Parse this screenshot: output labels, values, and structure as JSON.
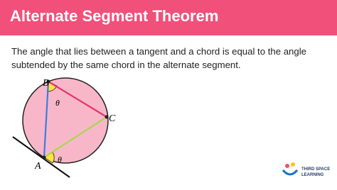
{
  "header": {
    "title": "Alternate Segment Theorem"
  },
  "body": {
    "text": "The angle that lies between a tangent and a chord is equal to the angle subtended by the same chord in the alternate segment."
  },
  "diagram": {
    "points": [
      "B",
      "C",
      "A"
    ],
    "angles": [
      "θ",
      "θ"
    ]
  },
  "logo": {
    "lines": [
      "THIRD SPACE",
      "LEARNING"
    ]
  }
}
